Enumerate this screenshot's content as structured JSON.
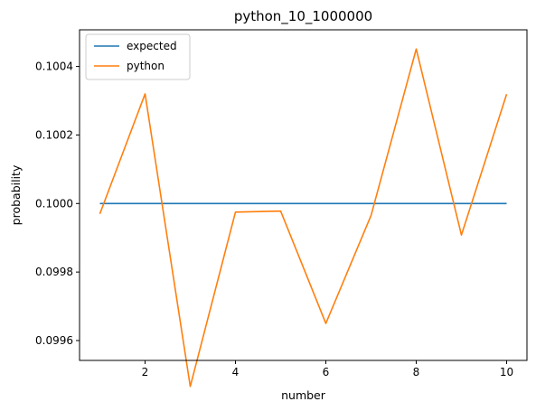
{
  "chart_data": {
    "type": "line",
    "title": "python_10_1000000",
    "xlabel": "number",
    "ylabel": "probability",
    "xlim": [
      0.55,
      10.45
    ],
    "ylim": [
      0.099542,
      0.100507
    ],
    "x_ticks": [
      2,
      4,
      6,
      8,
      10
    ],
    "y_ticks": [
      0.0996,
      0.0998,
      0.1,
      0.1002,
      0.1004
    ],
    "y_tick_labels": [
      "0.0996",
      "0.0998",
      "0.1000",
      "0.1002",
      "0.1004"
    ],
    "grid": false,
    "legend_position": "top-left",
    "x": [
      1,
      2,
      3,
      4,
      5,
      6,
      7,
      8,
      9,
      10
    ],
    "series": [
      {
        "name": "expected",
        "color": "#1f77b4",
        "values": [
          0.1,
          0.1,
          0.1,
          0.1,
          0.1,
          0.1,
          0.1,
          0.1,
          0.1,
          0.1
        ]
      },
      {
        "name": "python",
        "color": "#ff7f0e",
        "values": [
          0.09997,
          0.10032,
          0.099466,
          0.099975,
          0.099978,
          0.09965,
          0.099965,
          0.100451,
          0.099908,
          0.100319
        ]
      }
    ]
  }
}
